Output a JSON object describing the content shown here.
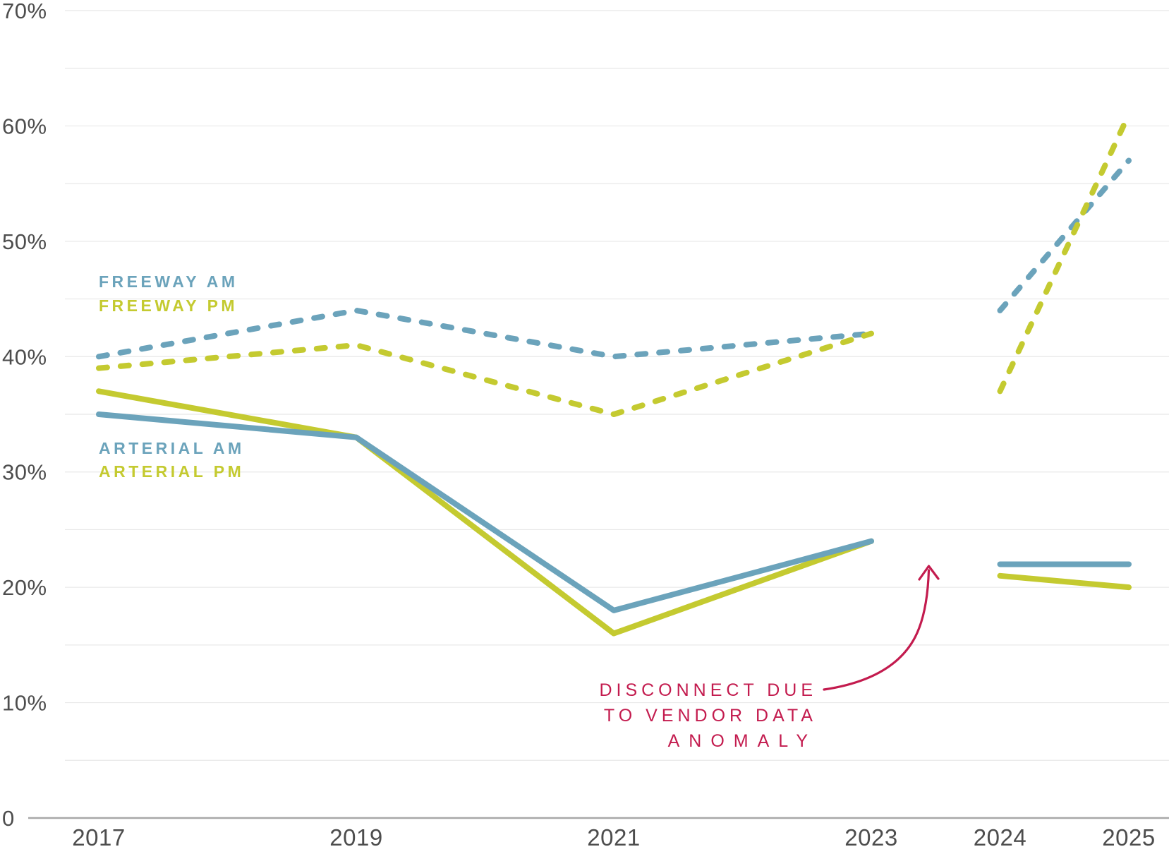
{
  "chart_data": {
    "type": "line",
    "x": [
      2017,
      2019,
      2021,
      2023,
      2024,
      2025
    ],
    "x_ticks": [
      {
        "year": 2017,
        "label": "2017"
      },
      {
        "year": 2019,
        "label": "2019"
      },
      {
        "year": 2021,
        "label": "2021"
      },
      {
        "year": 2023,
        "label": "2023"
      },
      {
        "year": 2024,
        "label": "2024"
      },
      {
        "year": 2025,
        "label": "2025"
      }
    ],
    "y_ticks": [
      {
        "value": 70,
        "label": "70%"
      },
      {
        "value": 60,
        "label": "60%"
      },
      {
        "value": 50,
        "label": "50%"
      },
      {
        "value": 40,
        "label": "40%"
      },
      {
        "value": 30,
        "label": "30%"
      },
      {
        "value": 20,
        "label": "20%"
      },
      {
        "value": 10,
        "label": "10%"
      },
      {
        "value": 0,
        "label": "0"
      }
    ],
    "ylim": [
      0,
      70
    ],
    "grid_step": 5,
    "grid": true,
    "legend_position": "inline-left",
    "disconnect_after_index": 3,
    "series": [
      {
        "name": "Arterial PM",
        "style": "solid",
        "color": "#c4ca30",
        "values": [
          37,
          33,
          16,
          24,
          21,
          20
        ]
      },
      {
        "name": "Arterial AM",
        "style": "solid",
        "color": "#6ba3bb",
        "values": [
          35,
          33,
          18,
          24,
          22,
          22
        ]
      },
      {
        "name": "Freeway AM",
        "style": "dashed",
        "color": "#6ba3bb",
        "values": [
          40,
          44,
          40,
          42,
          44,
          57
        ]
      },
      {
        "name": "Freeway PM",
        "style": "dashed",
        "color": "#c4ca30",
        "values": [
          39,
          41,
          35,
          42,
          37,
          61
        ]
      }
    ],
    "annotation": {
      "lines": [
        "DISCONNECT DUE",
        "TO VENDOR DATA",
        "ANOMALY"
      ],
      "color": "#c31b4e"
    }
  },
  "legend": {
    "items": [
      {
        "label": "FREEWAY AM",
        "color": "#6ba3bb"
      },
      {
        "label": "FREEWAY PM",
        "color": "#c4ca30"
      },
      {
        "label": "ARTERIAL AM",
        "color": "#6ba3bb"
      },
      {
        "label": "ARTERIAL PM",
        "color": "#c4ca30"
      }
    ]
  },
  "colors": {
    "blue": "#6ba3bb",
    "yellow_green": "#c4ca30",
    "annotation_red": "#c31b4e",
    "gridline": "#e8e8e8",
    "axis_line": "#a8a8a8",
    "tick_text": "#4d4d4d",
    "background": "#ffffff"
  }
}
